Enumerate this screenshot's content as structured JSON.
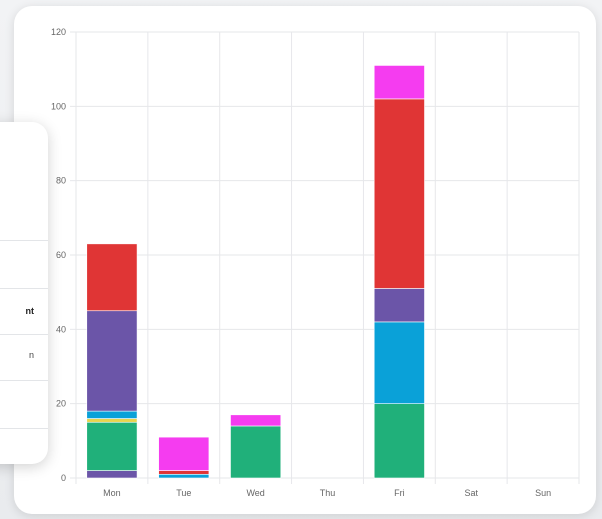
{
  "chart_data": {
    "type": "bar",
    "stacked": true,
    "categories": [
      "Mon",
      "Tue",
      "Wed",
      "Thu",
      "Fri",
      "Sat",
      "Sun"
    ],
    "ylim": [
      0,
      120
    ],
    "yticks": [
      "0",
      "20",
      "40",
      "60",
      "80",
      "100",
      "120"
    ],
    "grid": true,
    "series": [
      {
        "color": "#6b55a8",
        "values": [
          2,
          0,
          0,
          0,
          0,
          0,
          0
        ]
      },
      {
        "color": "#20b07a",
        "values": [
          13,
          0,
          14,
          0,
          20,
          0,
          0
        ]
      },
      {
        "color": "#e8d44d",
        "values": [
          1,
          0,
          0,
          0,
          0,
          0,
          0
        ]
      },
      {
        "color": "#0aa1d8",
        "values": [
          2,
          1,
          0,
          0,
          22,
          0,
          0
        ]
      },
      {
        "color": "#6b55a8",
        "values": [
          27,
          0,
          0,
          0,
          9,
          0,
          0
        ]
      },
      {
        "color": "#e03535",
        "values": [
          18,
          1,
          0,
          0,
          51,
          0,
          0
        ]
      },
      {
        "color": "#f53cf0",
        "values": [
          0,
          9,
          3,
          0,
          9,
          0,
          0
        ]
      }
    ]
  },
  "side_panel": {
    "fragments": [
      "nt",
      "n"
    ]
  },
  "colors": {
    "background": "#eef0f2",
    "card": "#ffffff",
    "grid": "#e6e7ea",
    "tick_text": "#666666"
  }
}
